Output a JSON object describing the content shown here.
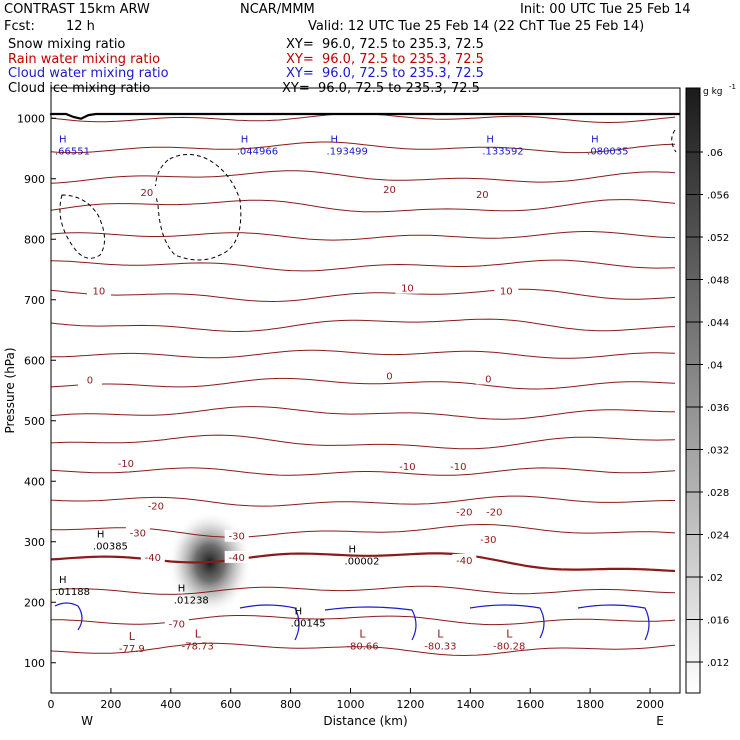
{
  "header": {
    "model": "CONTRAST 15km ARW",
    "center": "NCAR/MMM",
    "init": "Init: 00 UTC Tue 25 Feb 14",
    "fcst_label": "Fcst:",
    "fcst_value": "12 h",
    "valid": "Valid: 12 UTC Tue 25 Feb 14 (22 ChT Tue 25 Feb 14)"
  },
  "fields": [
    {
      "name": "Snow mixing ratio",
      "xy": "XY=  96.0, 72.5 to 235.3, 72.5",
      "color": "#000000"
    },
    {
      "name": "Rain water mixing ratio",
      "xy": "XY=  96.0, 72.5 to 235.3, 72.5",
      "color": "#c00000"
    },
    {
      "name": "Cloud water mixing ratio",
      "xy": "XY=  96.0, 72.5 to 235.3, 72.5",
      "color": "#1a1acc"
    },
    {
      "name": "Cloud ice mixing ratio",
      "xy": "XY=  96.0, 72.5 to 235.3, 72.5",
      "color": "#000000"
    }
  ],
  "colors": {
    "temperature_contour": "#8b1a1a",
    "cloud_water_contour": "#1a1acc",
    "cloud_ice_contour": "#000000",
    "ground": "#000000"
  },
  "chart_data": {
    "type": "heatmap",
    "xlabel": "Distance (km)",
    "ylabel": "Pressure (hPa)",
    "xlim": [
      0,
      2100
    ],
    "ylim": [
      1050,
      50
    ],
    "x_ticks": [
      0,
      200,
      400,
      600,
      800,
      1000,
      1200,
      1400,
      1600,
      1800,
      2000
    ],
    "y_ticks": [
      100,
      200,
      300,
      400,
      500,
      600,
      700,
      800,
      900,
      1000
    ],
    "x_end_labels": {
      "left": "W",
      "right": "E"
    },
    "colorbar": {
      "unit": "g kg",
      "unit_exp": "-1",
      "ticks": [
        ".06",
        ".056",
        ".052",
        ".048",
        ".044",
        ".04",
        ".036",
        ".032",
        ".028",
        ".024",
        ".02",
        ".016",
        ".012"
      ]
    },
    "temperature_contours": [
      {
        "label": "-70",
        "x": 420,
        "p": 160
      },
      {
        "label": "-40",
        "x": 340,
        "p": 270
      },
      {
        "label": "-40",
        "x": 620,
        "p": 270
      },
      {
        "label": "-40",
        "x": 1380,
        "p": 265
      },
      {
        "label": "-30",
        "x": 290,
        "p": 310
      },
      {
        "label": "-30",
        "x": 620,
        "p": 305
      },
      {
        "label": "-30",
        "x": 1460,
        "p": 300
      },
      {
        "label": "-20",
        "x": 350,
        "p": 355
      },
      {
        "label": "-20",
        "x": 1380,
        "p": 345
      },
      {
        "label": "-20",
        "x": 1480,
        "p": 345
      },
      {
        "label": "-10",
        "x": 250,
        "p": 425
      },
      {
        "label": "-10",
        "x": 1190,
        "p": 420
      },
      {
        "label": "-10",
        "x": 1360,
        "p": 420
      },
      {
        "label": "0",
        "x": 130,
        "p": 563
      },
      {
        "label": "0",
        "x": 1130,
        "p": 570
      },
      {
        "label": "0",
        "x": 1460,
        "p": 565
      },
      {
        "label": "10",
        "x": 160,
        "p": 710
      },
      {
        "label": "10",
        "x": 1190,
        "p": 715
      },
      {
        "label": "10",
        "x": 1520,
        "p": 710
      },
      {
        "label": "20",
        "x": 320,
        "p": 873
      },
      {
        "label": "20",
        "x": 1130,
        "p": 878
      },
      {
        "label": "20",
        "x": 1440,
        "p": 870
      }
    ],
    "minima": [
      {
        "label": "-77.9",
        "x": 270,
        "p": 118
      },
      {
        "label": "-78.73",
        "x": 490,
        "p": 122
      },
      {
        "label": "-80.66",
        "x": 1040,
        "p": 122
      },
      {
        "label": "-80.33",
        "x": 1300,
        "p": 122
      },
      {
        "label": "-80.28",
        "x": 1530,
        "p": 122
      }
    ],
    "maxima": [
      {
        "label": ".00145",
        "x": 800,
        "p": 160
      },
      {
        "label": ".01238",
        "x": 410,
        "p": 198
      },
      {
        "label": ".01188",
        "x": 0,
        "p": 212
      },
      {
        "label": ".00385",
        "x": 140,
        "p": 287
      },
      {
        "label": ".00002",
        "x": 980,
        "p": 262
      },
      {
        "label": ".66551",
        "x": 0,
        "p": 940
      },
      {
        "label": ".044966",
        "x": 620,
        "p": 940
      },
      {
        "label": ".193499",
        "x": 920,
        "p": 940
      },
      {
        "label": ".133592",
        "x": 1440,
        "p": 940
      },
      {
        "label": ".080035",
        "x": 1790,
        "p": 940
      }
    ],
    "snow_max": {
      "x": 530,
      "p": 265,
      "value": 0.06
    }
  }
}
